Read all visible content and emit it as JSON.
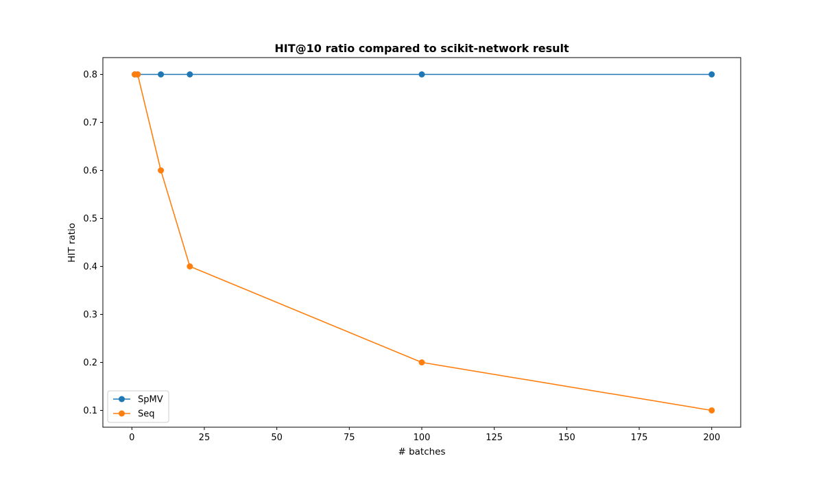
{
  "chart_data": {
    "type": "line",
    "title": "HIT@10 ratio compared to scikit-network result",
    "xlabel": "# batches",
    "ylabel": "HIT ratio",
    "xlim": [
      -10,
      210
    ],
    "ylim": [
      0.065,
      0.835
    ],
    "xticks": [
      0,
      25,
      50,
      75,
      100,
      125,
      150,
      175,
      200
    ],
    "yticks": [
      0.1,
      0.2,
      0.3,
      0.4,
      0.5,
      0.6,
      0.7,
      0.8
    ],
    "grid": false,
    "legend_position": "lower-left",
    "series": [
      {
        "name": "SpMV",
        "color": "#1f77b4",
        "marker": "circle",
        "x": [
          1,
          2,
          10,
          20,
          100,
          200
        ],
        "y": [
          0.8,
          0.8,
          0.8,
          0.8,
          0.8,
          0.8
        ]
      },
      {
        "name": "Seq",
        "color": "#ff7f0e",
        "marker": "circle",
        "x": [
          1,
          2,
          10,
          20,
          100,
          200
        ],
        "y": [
          0.8,
          0.8,
          0.6,
          0.4,
          0.2,
          0.1
        ]
      }
    ]
  }
}
